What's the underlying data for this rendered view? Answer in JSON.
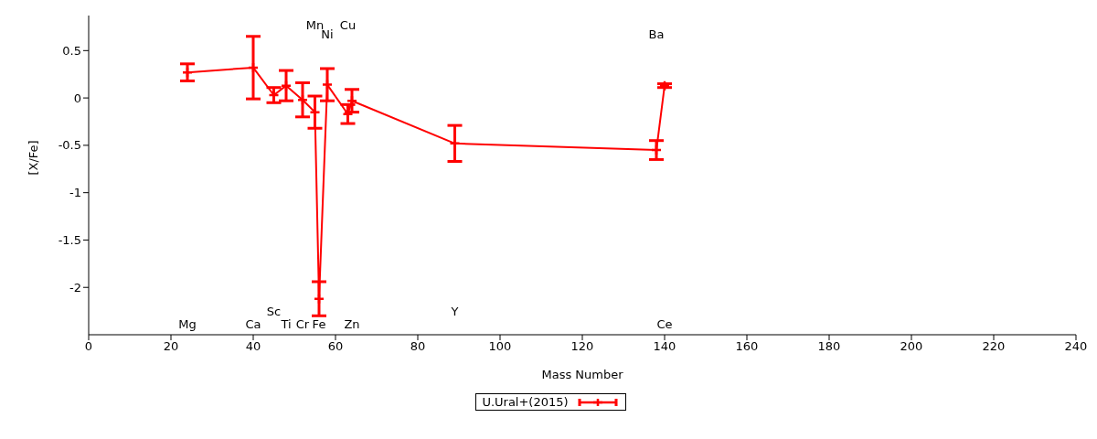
{
  "chart_data": {
    "type": "line",
    "xlabel": "Mass Number",
    "ylabel": "[X/Fe]",
    "x": [
      24,
      40,
      45,
      48,
      52,
      55,
      56,
      58,
      63,
      64,
      89,
      138,
      140
    ],
    "series": [
      {
        "name": "U.Ural+(2015)",
        "color": "#ff0000",
        "values": [
          0.27,
          0.32,
          0.03,
          0.13,
          -0.02,
          -0.15,
          -2.12,
          0.14,
          -0.17,
          -0.03,
          -0.48,
          -0.55,
          0.13
        ],
        "errors": [
          0.09,
          0.33,
          0.08,
          0.16,
          0.18,
          0.17,
          0.18,
          0.17,
          0.1,
          0.12,
          0.19,
          0.1,
          0.02
        ]
      }
    ],
    "xlim": [
      0,
      240
    ],
    "xticks": [
      0,
      20,
      40,
      60,
      80,
      100,
      120,
      140,
      160,
      180,
      200,
      220,
      240
    ],
    "ylim": [
      -2.5,
      0.87
    ],
    "yticks": [
      -2,
      -1.5,
      -1,
      -0.5,
      0,
      0.5
    ],
    "annotations": [
      "Mg",
      "Ca",
      "Sc",
      "Ti",
      "Cr",
      "Mn",
      "Fe",
      "Ni",
      "Cu",
      "Zn",
      "Y",
      "Ba",
      "Ce"
    ],
    "legend": "bottom",
    "grid": false,
    "marker": "cross",
    "line_style": "solid"
  }
}
